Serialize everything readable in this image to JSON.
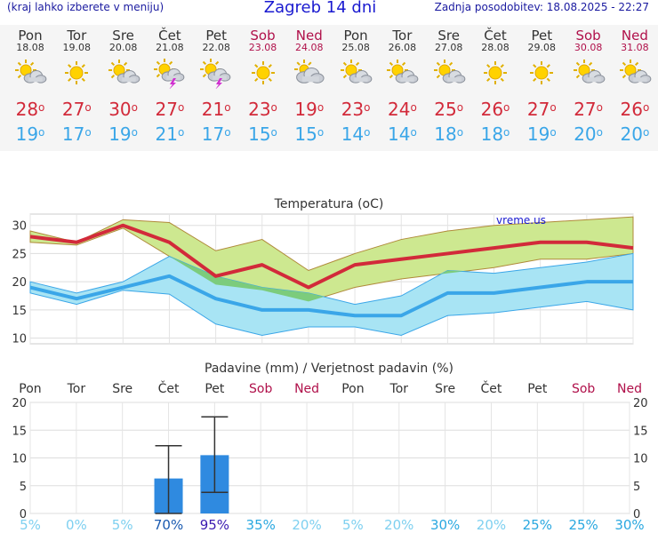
{
  "header": {
    "menu_hint": "(kraj lahko izberete v meniju)",
    "title": "Zagreb 14 dni",
    "updated": "Zadnja posodobitev: 18.08.2025 - 22:27"
  },
  "days": [
    {
      "name": "Pon",
      "date": "18.08",
      "icon": "sun-cloud-icon",
      "max": "28",
      "min": "19",
      "weekend": false
    },
    {
      "name": "Tor",
      "date": "19.08",
      "icon": "sun-icon",
      "max": "27",
      "min": "17",
      "weekend": false
    },
    {
      "name": "Sre",
      "date": "20.08",
      "icon": "sun-cloud-icon",
      "max": "30",
      "min": "19",
      "weekend": false
    },
    {
      "name": "Čet",
      "date": "21.08",
      "icon": "thunderstorm-icon",
      "max": "27",
      "min": "21",
      "weekend": false
    },
    {
      "name": "Pet",
      "date": "22.08",
      "icon": "thunderstorm-icon",
      "max": "21",
      "min": "17",
      "weekend": false
    },
    {
      "name": "Sob",
      "date": "23.08",
      "icon": "sun-icon",
      "max": "23",
      "min": "15",
      "weekend": true
    },
    {
      "name": "Ned",
      "date": "24.08",
      "icon": "cloudy-icon",
      "max": "19",
      "min": "15",
      "weekend": true
    },
    {
      "name": "Pon",
      "date": "25.08",
      "icon": "sun-cloud-icon",
      "max": "23",
      "min": "14",
      "weekend": false
    },
    {
      "name": "Tor",
      "date": "26.08",
      "icon": "sun-cloud-icon",
      "max": "24",
      "min": "14",
      "weekend": false
    },
    {
      "name": "Sre",
      "date": "27.08",
      "icon": "sun-cloud-icon",
      "max": "25",
      "min": "18",
      "weekend": false
    },
    {
      "name": "Čet",
      "date": "28.08",
      "icon": "sun-icon",
      "max": "26",
      "min": "18",
      "weekend": false
    },
    {
      "name": "Pet",
      "date": "29.08",
      "icon": "sun-icon",
      "max": "27",
      "min": "19",
      "weekend": false
    },
    {
      "name": "Sob",
      "date": "30.08",
      "icon": "sun-cloud-icon",
      "max": "27",
      "min": "20",
      "weekend": true
    },
    {
      "name": "Ned",
      "date": "31.08",
      "icon": "sun-cloud-icon",
      "max": "26",
      "min": "20",
      "weekend": true
    }
  ],
  "degree_symbol": "o",
  "colors": {
    "max": "#d22a3a",
    "min": "#3aa6e8",
    "weekend": "#b0104a",
    "bar": "#2f8ae0",
    "max_band": "#cde890",
    "min_band": "#a8e4f4",
    "overlap": "#7ccc7c"
  },
  "chart_data": [
    {
      "type": "line",
      "title": "Temperatura (oC)",
      "watermark": "vreme.us",
      "categories": [
        "Pon",
        "Tor",
        "Sre",
        "Čet",
        "Pet",
        "Sob",
        "Ned",
        "Pon",
        "Tor",
        "Sre",
        "Čet",
        "Pet",
        "Sob",
        "Ned"
      ],
      "ylim": [
        9,
        32
      ],
      "yticks": [
        10,
        15,
        20,
        25,
        30
      ],
      "grid": true,
      "series": [
        {
          "key": "max_upper",
          "values": [
            29,
            27,
            31,
            30.5,
            25.5,
            27.5,
            22,
            25,
            27.5,
            29,
            30,
            30.5,
            31,
            31.5
          ]
        },
        {
          "key": "max_lower",
          "values": [
            27,
            26.5,
            29.5,
            24.5,
            19.5,
            18.5,
            16.5,
            19,
            20.5,
            21.5,
            22.5,
            24,
            24,
            25
          ]
        },
        {
          "key": "max",
          "values": [
            28,
            27,
            30,
            27,
            21,
            23,
            19,
            23,
            24,
            25,
            26,
            27,
            27,
            26
          ]
        },
        {
          "key": "min_upper",
          "values": [
            20,
            18,
            20,
            24.5,
            21,
            19,
            18,
            16,
            17.5,
            22,
            21.5,
            22.5,
            23.5,
            25
          ]
        },
        {
          "key": "min_lower",
          "values": [
            18,
            16,
            18.5,
            17.8,
            12.5,
            10.5,
            12,
            12,
            10.5,
            14,
            14.5,
            15.5,
            16.5,
            15
          ]
        },
        {
          "key": "min",
          "values": [
            19,
            17,
            19,
            21,
            17,
            15,
            15,
            14,
            14,
            18,
            18,
            19,
            20,
            20
          ]
        }
      ]
    },
    {
      "type": "bar",
      "title": "Padavine (mm) / Verjetnost padavin (%)",
      "categories": [
        "Pon",
        "Tor",
        "Sre",
        "Čet",
        "Pet",
        "Sob",
        "Ned",
        "Pon",
        "Tor",
        "Sre",
        "Čet",
        "Pet",
        "Sob",
        "Ned"
      ],
      "weekend": [
        false,
        false,
        false,
        false,
        false,
        true,
        true,
        false,
        false,
        false,
        false,
        false,
        true,
        true
      ],
      "ylim": [
        0,
        20
      ],
      "yticks": [
        0,
        5,
        10,
        15,
        20
      ],
      "values": [
        0,
        0,
        0,
        6.3,
        10.5,
        0,
        0,
        0,
        0,
        0,
        0,
        0,
        0,
        0
      ],
      "error_high": [
        0,
        0,
        0,
        12.2,
        17.4,
        0,
        0,
        0,
        0,
        0,
        0,
        0,
        0,
        0
      ],
      "error_low": [
        0,
        0,
        0,
        0,
        3.8,
        0,
        0,
        0,
        0,
        0,
        0,
        0,
        0,
        0
      ],
      "probability": [
        "5%",
        "0%",
        "5%",
        "70%",
        "95%",
        "35%",
        "20%",
        "5%",
        "20%",
        "30%",
        "20%",
        "25%",
        "25%",
        "30%"
      ],
      "probability_values": [
        5,
        0,
        5,
        70,
        95,
        35,
        20,
        5,
        20,
        30,
        20,
        25,
        25,
        30
      ]
    }
  ]
}
